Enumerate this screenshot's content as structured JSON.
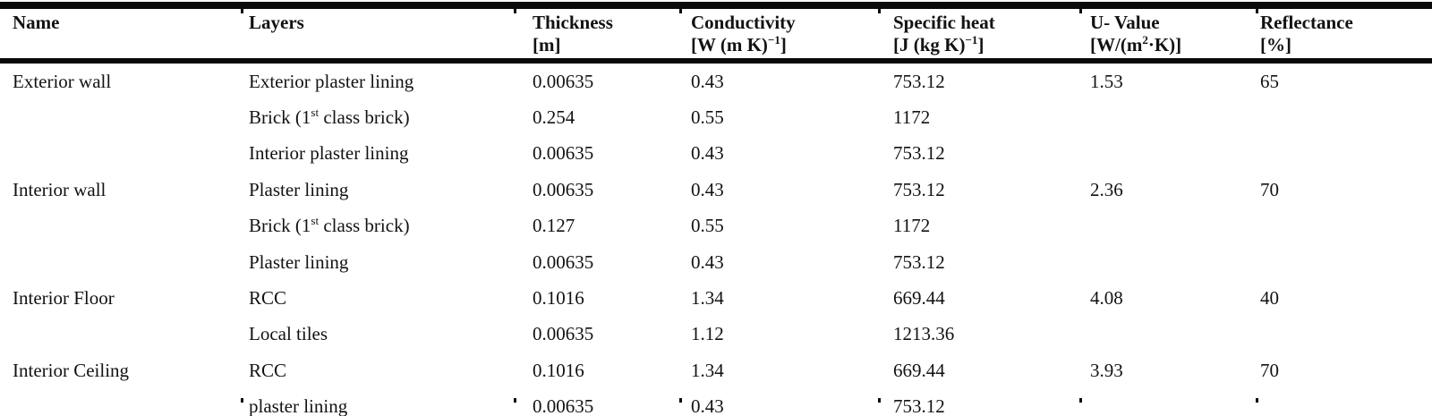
{
  "document": {
    "background": "#ffffff",
    "text_color": "#121212",
    "rule_color": "#0a0a0a"
  },
  "table": {
    "title": "construction-materials-thermal-properties",
    "columns": [
      {
        "id": "name",
        "label": "Name",
        "unit": ""
      },
      {
        "id": "layer",
        "label": "Layers",
        "unit": ""
      },
      {
        "id": "thickness",
        "label": "Thickness",
        "unit": "[m]"
      },
      {
        "id": "conductivity",
        "label": "Conductivity",
        "unit": "[W (m K)^{−1}]"
      },
      {
        "id": "specific_heat",
        "label": "Specific heat",
        "unit": "[J (kg K)^{−1}]"
      },
      {
        "id": "u_value",
        "label": "U- Value",
        "unit": "[W/(m^{2}·K)]"
      },
      {
        "id": "reflectance",
        "label": "Reflectance",
        "unit": "[%]"
      }
    ],
    "rows": [
      {
        "name": "Exterior wall",
        "layer": "Exterior plaster lining",
        "thickness": "0.00635",
        "conductivity": "0.43",
        "specific_heat": "753.12",
        "u_value": "1.53",
        "reflectance": "65"
      },
      {
        "name": "",
        "layer": "Brick (1^{st} class brick)",
        "thickness": "0.254",
        "conductivity": "0.55",
        "specific_heat": "1172",
        "u_value": "",
        "reflectance": ""
      },
      {
        "name": "",
        "layer": "Interior plaster lining",
        "thickness": "0.00635",
        "conductivity": "0.43",
        "specific_heat": "753.12",
        "u_value": "",
        "reflectance": ""
      },
      {
        "name": "Interior wall",
        "layer": "Plaster lining",
        "thickness": "0.00635",
        "conductivity": "0.43",
        "specific_heat": "753.12",
        "u_value": "2.36",
        "reflectance": "70"
      },
      {
        "name": "",
        "layer": "Brick (1^{st} class brick)",
        "thickness": "0.127",
        "conductivity": "0.55",
        "specific_heat": "1172",
        "u_value": "",
        "reflectance": ""
      },
      {
        "name": "",
        "layer": "Plaster lining",
        "thickness": "0.00635",
        "conductivity": "0.43",
        "specific_heat": "753.12",
        "u_value": "",
        "reflectance": ""
      },
      {
        "name": "Interior Floor",
        "layer": "RCC",
        "thickness": "0.1016",
        "conductivity": "1.34",
        "specific_heat": "669.44",
        "u_value": "4.08",
        "reflectance": "40"
      },
      {
        "name": "",
        "layer": "Local tiles",
        "thickness": "0.00635",
        "conductivity": "1.12",
        "specific_heat": "1213.36",
        "u_value": "",
        "reflectance": ""
      },
      {
        "name": "Interior Ceiling",
        "layer": "RCC",
        "thickness": "0.1016",
        "conductivity": "1.34",
        "specific_heat": "669.44",
        "u_value": "3.93",
        "reflectance": "70"
      },
      {
        "name": "",
        "layer": "plaster lining",
        "thickness": "0.00635",
        "conductivity": "0.43",
        "specific_heat": "753.12",
        "u_value": "",
        "reflectance": ""
      }
    ]
  }
}
